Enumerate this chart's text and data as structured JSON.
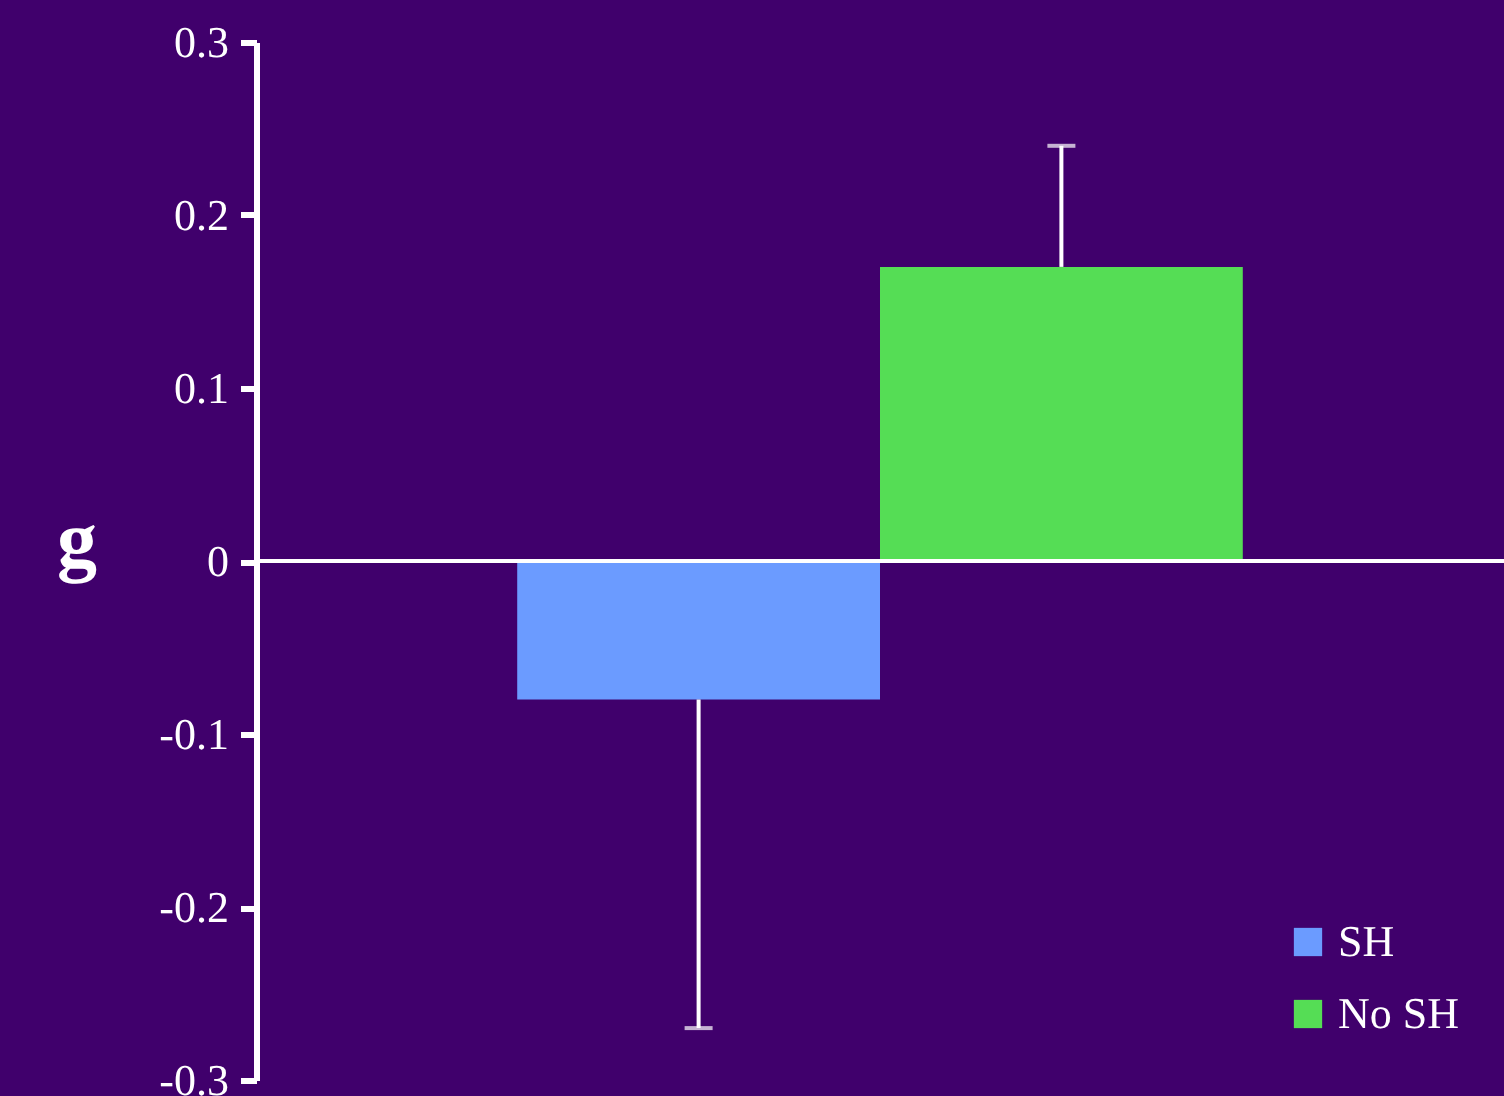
{
  "chart_data": {
    "type": "bar",
    "ylabel": "g",
    "categories": [
      null
    ],
    "series": [
      {
        "name": "SH",
        "color": "#6b9bff",
        "values": [
          -0.08
        ],
        "errors": [
          [
            -0.27,
            -0.08
          ]
        ]
      },
      {
        "name": "No SH",
        "color": "#55dd55",
        "values": [
          0.17
        ],
        "errors": [
          [
            0.17,
            0.24
          ]
        ]
      }
    ],
    "ylim": [
      -0.3,
      0.3
    ],
    "yticks": [
      -0.3,
      -0.2,
      -0.1,
      0,
      0.1,
      0.2,
      0.3
    ],
    "grid": false,
    "ref_lines": [
      {
        "axis": "y",
        "value": 0,
        "color": "#ffffff"
      }
    ],
    "legend": "bottom right"
  }
}
